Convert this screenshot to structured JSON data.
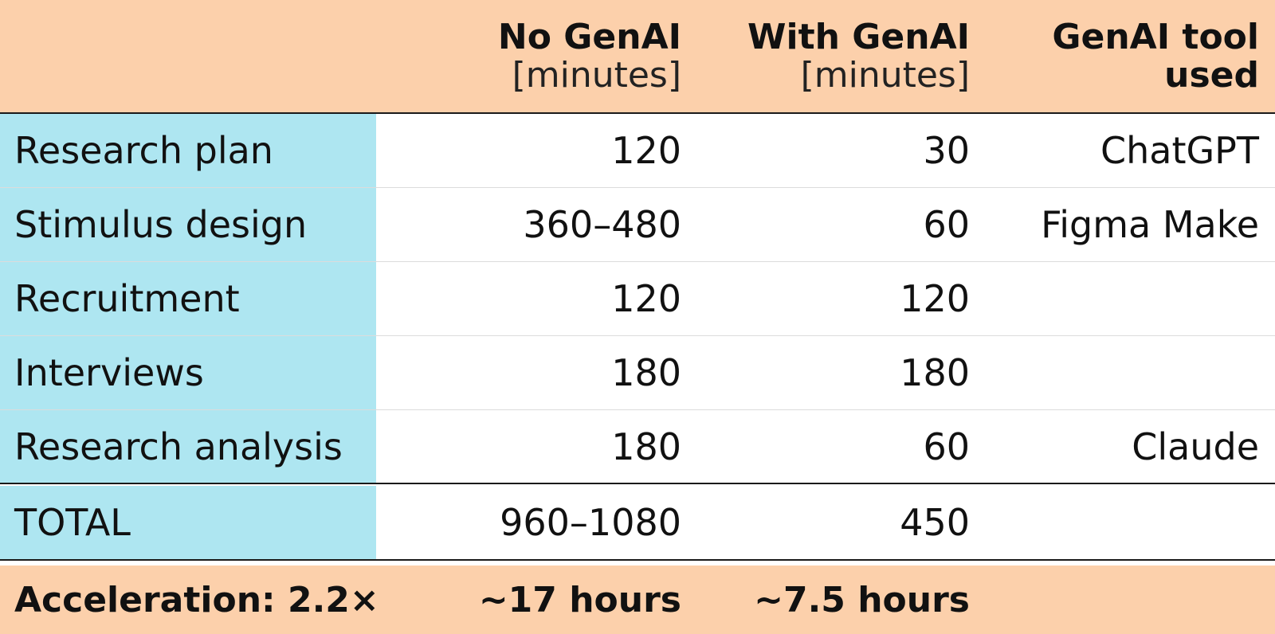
{
  "header": {
    "col1_title": "No GenAI",
    "col1_unit": "[minutes]",
    "col2_title": "With GenAI",
    "col2_unit": "[minutes]",
    "col3_title_line1": "GenAI tool",
    "col3_title_line2": "used"
  },
  "rows": [
    {
      "task": "Research plan",
      "no_genai": "120",
      "with_genai": "30",
      "tool": "ChatGPT"
    },
    {
      "task": "Stimulus design",
      "no_genai": "360–480",
      "with_genai": "60",
      "tool": "Figma Make"
    },
    {
      "task": "Recruitment",
      "no_genai": "120",
      "with_genai": "120",
      "tool": ""
    },
    {
      "task": "Interviews",
      "no_genai": "180",
      "with_genai": "180",
      "tool": ""
    },
    {
      "task": "Research analysis",
      "no_genai": "180",
      "with_genai": "60",
      "tool": "Claude"
    }
  ],
  "total": {
    "label": "TOTAL",
    "no_genai": "960–1080",
    "with_genai": "450",
    "tool": ""
  },
  "footer": {
    "acceleration": "Acceleration: 2.2×",
    "no_genai_hours": "~17 hours",
    "with_genai_hours": "~7.5 hours",
    "tool": ""
  }
}
